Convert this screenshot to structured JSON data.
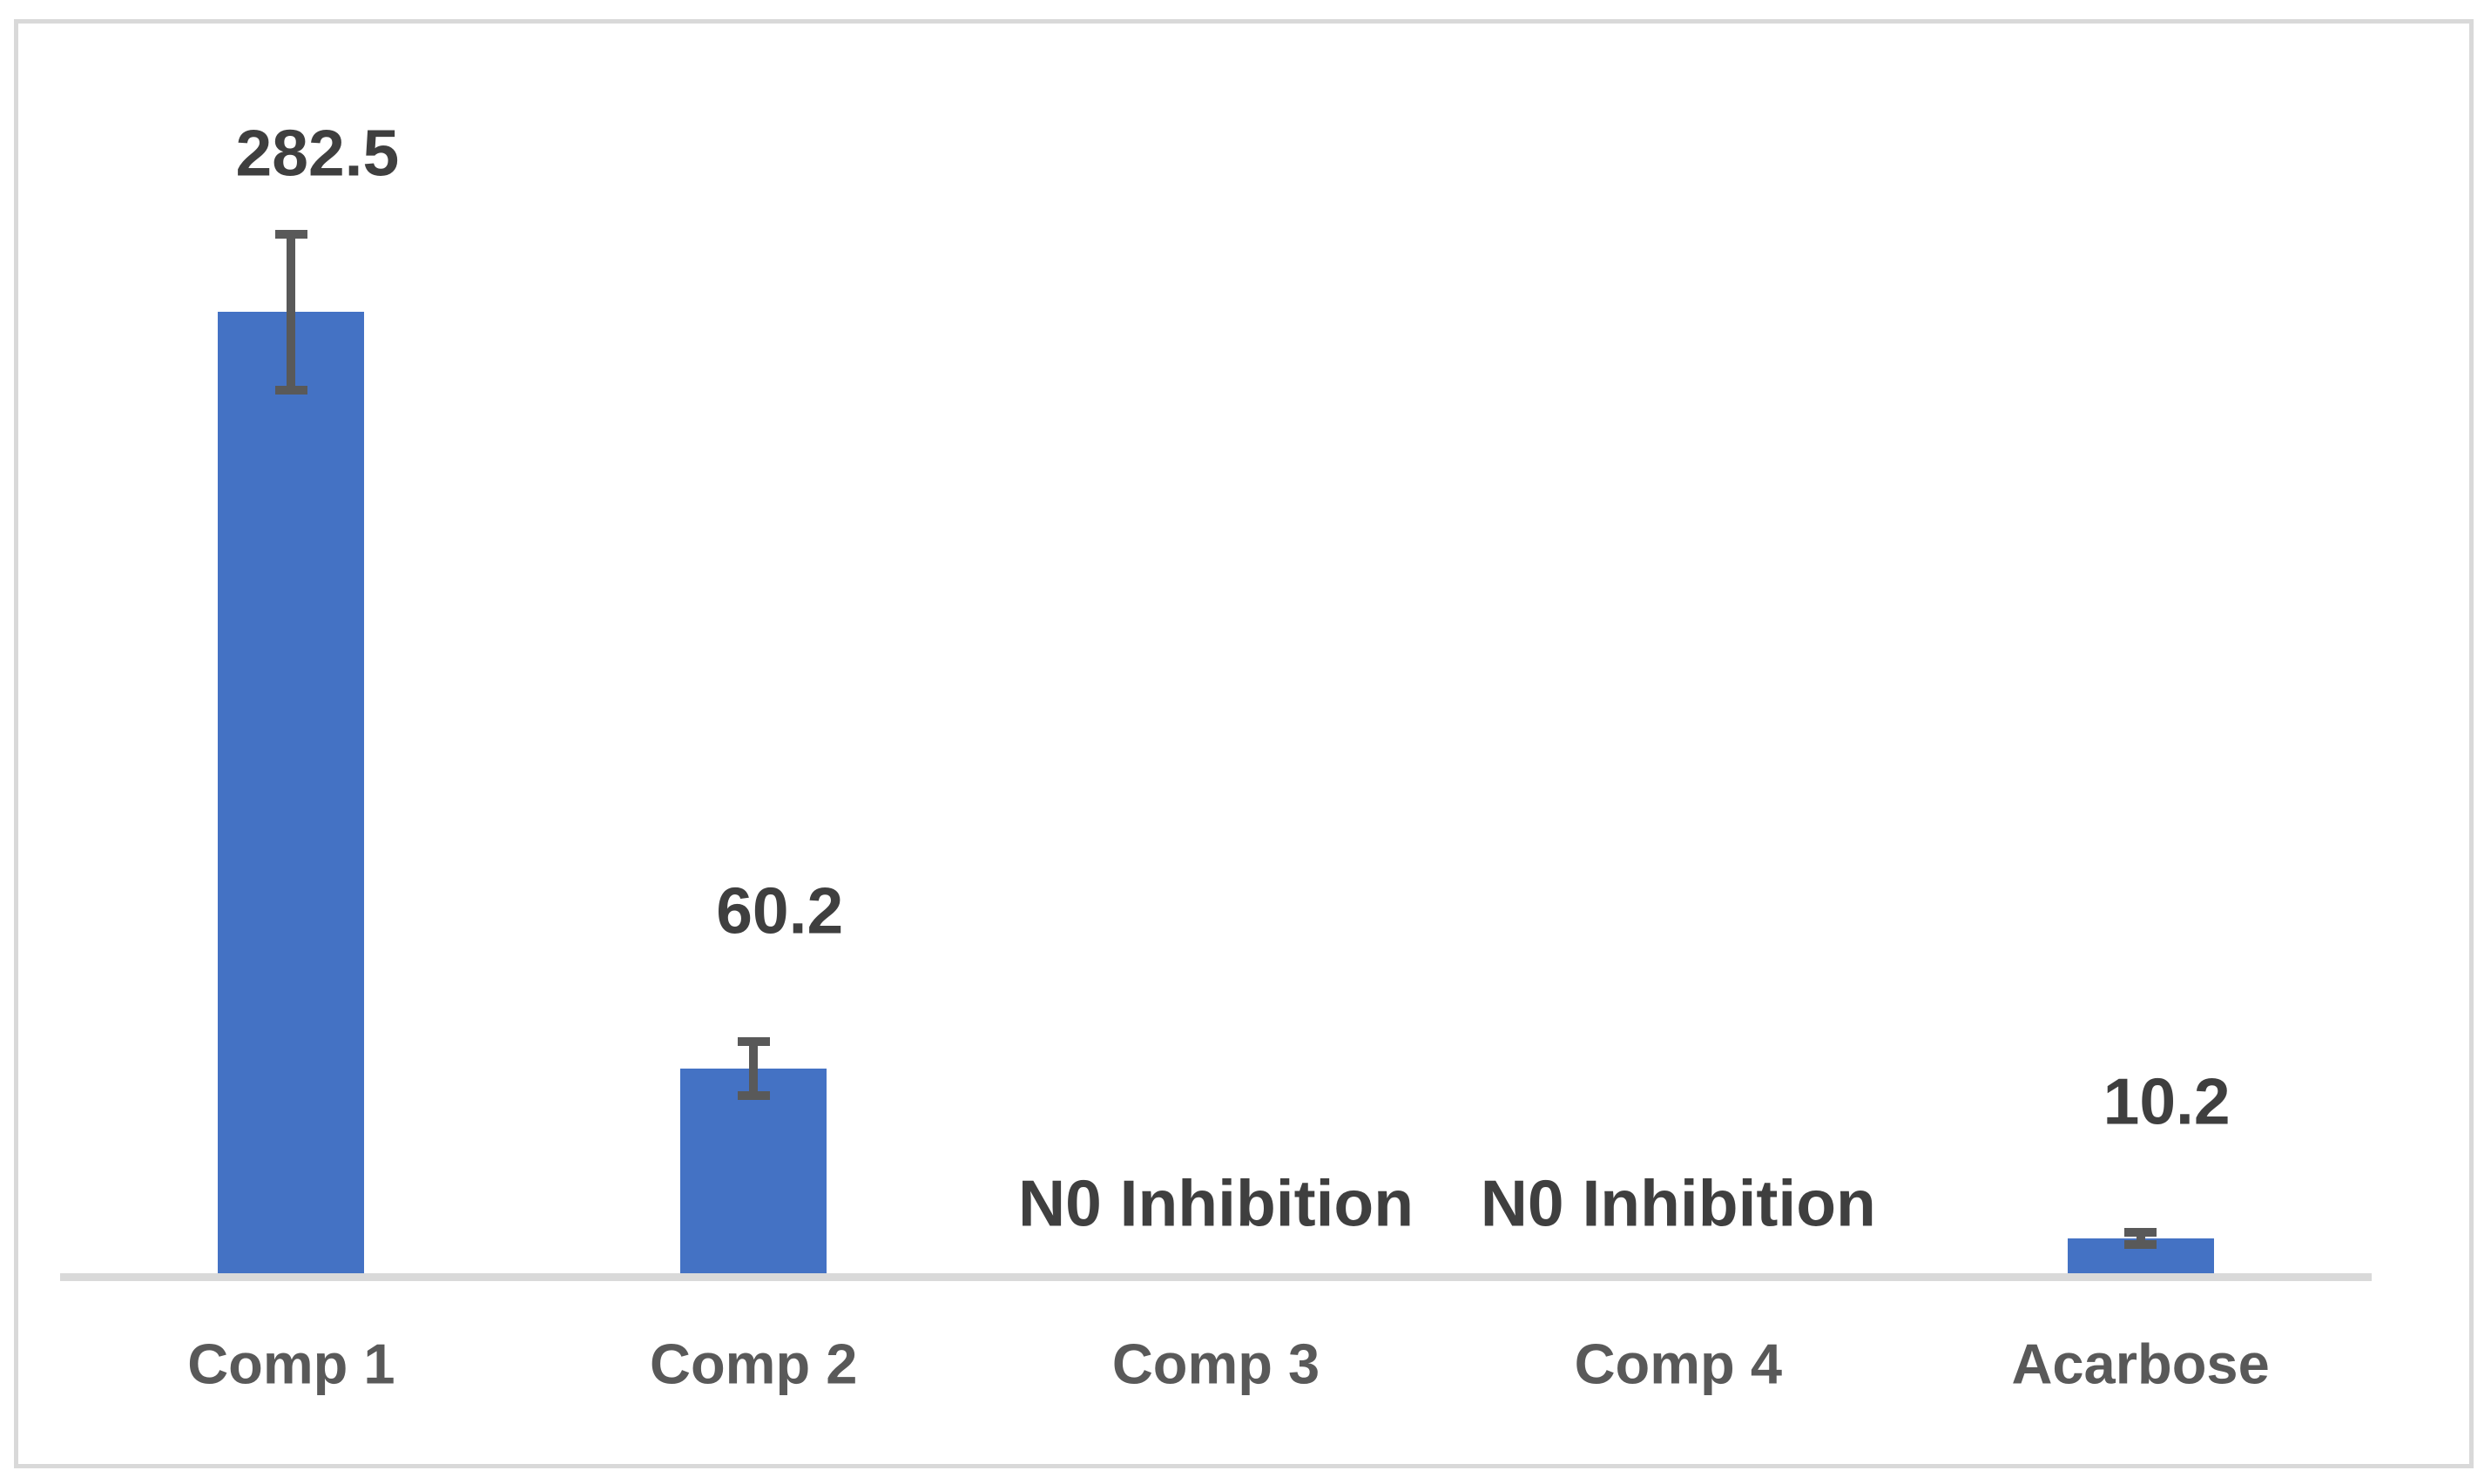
{
  "chart_data": {
    "type": "bar",
    "title": "",
    "xlabel": "",
    "ylabel": "",
    "categories": [
      "Comp 1",
      "Comp 2",
      "Comp 3",
      "Comp 4",
      "Acarbose"
    ],
    "points": [
      {
        "category": "Comp 1",
        "value": 282.5,
        "error": 23,
        "data_label": "282.5"
      },
      {
        "category": "Comp 2",
        "value": 60.2,
        "error": 8,
        "data_label": "60.2"
      },
      {
        "category": "Comp 3",
        "value": null,
        "error": null,
        "data_label": "N0 Inhibition"
      },
      {
        "category": "Comp 4",
        "value": null,
        "error": null,
        "data_label": "N0 Inhibition"
      },
      {
        "category": "Acarbose",
        "value": 10.2,
        "error": 1.8,
        "data_label": "10.2"
      }
    ],
    "ylim": [
      0,
      360
    ],
    "y_axis_visible": false,
    "x_axis_visible": true,
    "gridlines": false,
    "legend": null,
    "colors": {
      "bar": "#4472C4",
      "error_bar": "#595959",
      "data_label": "#3F3F3F",
      "no_inhibition_label": "#3F3F3F",
      "category_label": "#595959",
      "axis_line": "#D9D9D9",
      "frame_border": "#D9D9D9",
      "background": "#FFFFFF"
    }
  }
}
